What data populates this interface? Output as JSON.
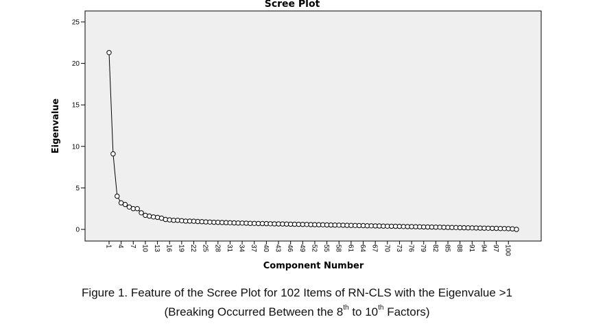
{
  "chart_data": {
    "type": "line",
    "title": "Scree Plot",
    "xlabel": "Component Number",
    "ylabel": "Eigenvalue",
    "ylim": [
      0,
      25
    ],
    "yticks": [
      0,
      5,
      10,
      15,
      20,
      25
    ],
    "xlim": [
      1,
      102
    ],
    "xticks": [
      1,
      4,
      7,
      10,
      13,
      16,
      19,
      22,
      25,
      28,
      31,
      34,
      37,
      40,
      43,
      46,
      49,
      52,
      55,
      58,
      61,
      64,
      67,
      70,
      73,
      76,
      79,
      82,
      85,
      88,
      91,
      94,
      97,
      100
    ],
    "grid": false,
    "legend": "none",
    "series": [
      {
        "x": [
          1,
          2,
          3,
          4,
          5,
          6,
          7,
          8,
          9,
          10,
          11,
          12,
          13,
          14,
          15,
          16,
          17,
          18,
          19,
          20,
          21,
          22,
          23,
          24,
          25,
          26,
          27,
          28,
          29,
          30,
          31,
          32,
          33,
          34,
          35,
          36,
          37,
          38,
          39,
          40,
          41,
          42,
          43,
          44,
          45,
          46,
          47,
          48,
          49,
          50,
          51,
          52,
          53,
          54,
          55,
          56,
          57,
          58,
          59,
          60,
          61,
          62,
          63,
          64,
          65,
          66,
          67,
          68,
          69,
          70,
          71,
          72,
          73,
          74,
          75,
          76,
          77,
          78,
          79,
          80,
          81,
          82,
          83,
          84,
          85,
          86,
          87,
          88,
          89,
          90,
          91,
          92,
          93,
          94,
          95,
          96,
          97,
          98,
          99,
          100,
          101,
          102
        ],
        "values": [
          21.3,
          9.1,
          4.0,
          3.2,
          3.0,
          2.7,
          2.5,
          2.5,
          2.0,
          1.7,
          1.6,
          1.5,
          1.45,
          1.35,
          1.2,
          1.15,
          1.1,
          1.1,
          1.05,
          1.0,
          1.0,
          0.98,
          0.95,
          0.93,
          0.9,
          0.88,
          0.86,
          0.85,
          0.83,
          0.82,
          0.8,
          0.78,
          0.77,
          0.76,
          0.75,
          0.73,
          0.72,
          0.71,
          0.7,
          0.69,
          0.68,
          0.67,
          0.66,
          0.65,
          0.64,
          0.63,
          0.62,
          0.61,
          0.6,
          0.59,
          0.58,
          0.57,
          0.56,
          0.55,
          0.54,
          0.53,
          0.52,
          0.51,
          0.5,
          0.49,
          0.48,
          0.47,
          0.46,
          0.45,
          0.44,
          0.43,
          0.42,
          0.41,
          0.4,
          0.39,
          0.38,
          0.37,
          0.36,
          0.35,
          0.34,
          0.33,
          0.32,
          0.31,
          0.3,
          0.29,
          0.28,
          0.27,
          0.26,
          0.25,
          0.24,
          0.23,
          0.22,
          0.21,
          0.2,
          0.19,
          0.18,
          0.17,
          0.16,
          0.15,
          0.14,
          0.13,
          0.12,
          0.11,
          0.1,
          0.09,
          0.07,
          0.0
        ],
        "color": "#000000"
      }
    ]
  },
  "colors": {
    "plot_background": "#efefef",
    "line": "#000000",
    "marker_fill": "#ffffff"
  },
  "caption": {
    "line1": "Figure 1. Feature of the Scree Plot for 102 Items of RN-CLS with the Eigenvalue >1",
    "line2_prefix": "(Breaking Occurred Between the 8",
    "line2_sup1": "th",
    "line2_middle": " to 10",
    "line2_sup2": "th",
    "line2_suffix": " Factors)"
  }
}
